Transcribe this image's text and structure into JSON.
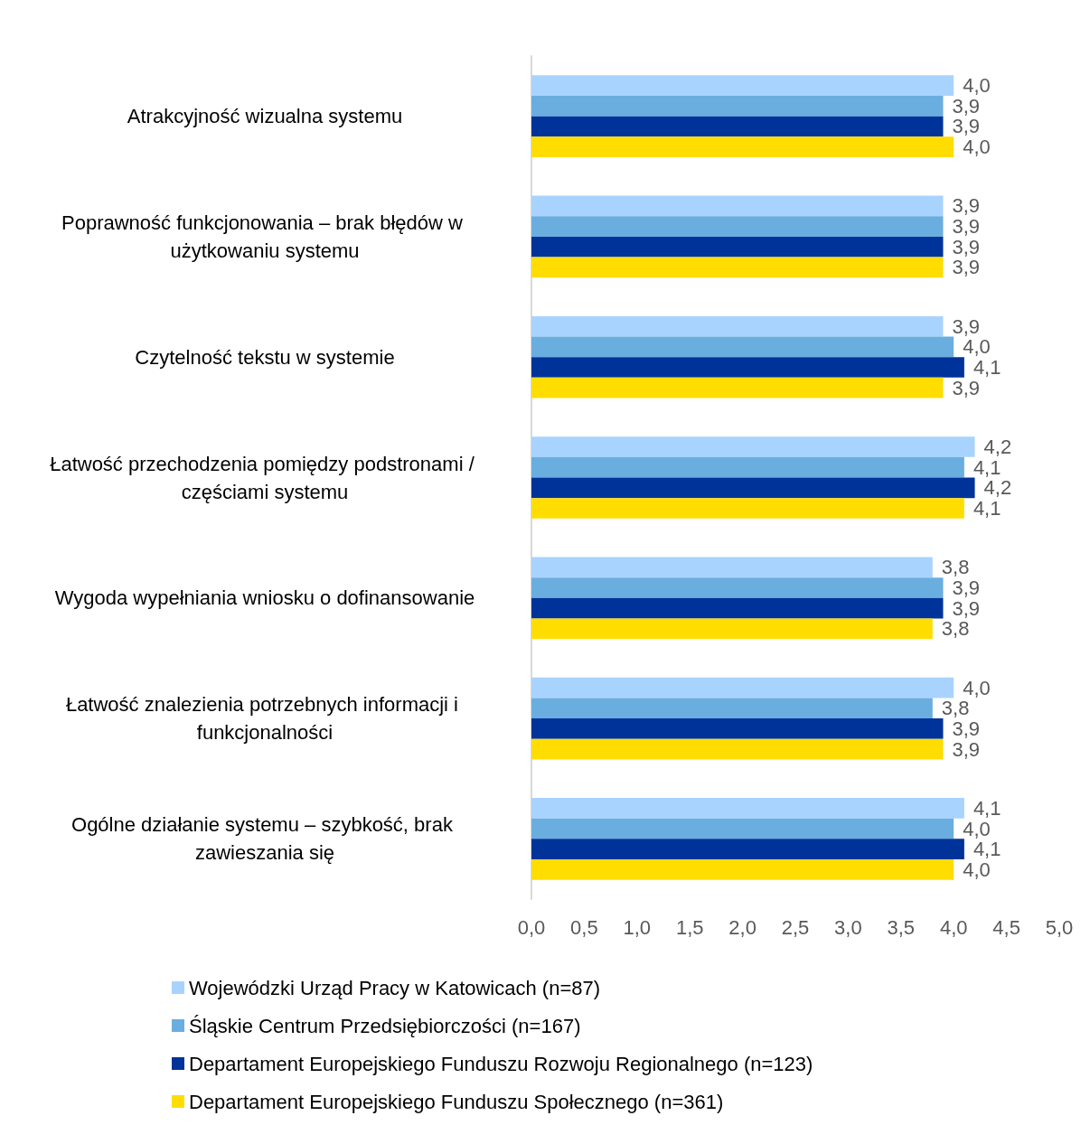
{
  "chart_data": {
    "type": "bar",
    "orientation": "horizontal",
    "categories": [
      "Atrakcyjność wizualna systemu",
      "Poprawność funkcjonowania – brak błędów w użytkowaniu systemu",
      "Czytelność tekstu w systemie",
      "Łatwość przechodzenia pomiędzy podstronami / częściami systemu",
      "Wygoda wypełniania wniosku o dofinansowanie",
      "Łatwość znalezienia potrzebnych informacji i funkcjonalności",
      "Ogólne działanie systemu – szybkość, brak zawieszania się"
    ],
    "series": [
      {
        "name": "Wojewódzki Urząd Pracy w Katowicach (n=87)",
        "color": "#a9d3ff",
        "values": [
          4.0,
          3.9,
          3.9,
          4.2,
          3.8,
          4.0,
          4.1
        ],
        "value_labels": [
          "4,0",
          "3,9",
          "3,9",
          "4,2",
          "3,8",
          "4,0",
          "4,1"
        ]
      },
      {
        "name": "Śląskie Centrum Przedsiębiorczości (n=167)",
        "color": "#6aaee0",
        "values": [
          3.9,
          3.9,
          4.0,
          4.1,
          3.9,
          3.8,
          4.0
        ],
        "value_labels": [
          "3,9",
          "3,9",
          "4,0",
          "4,1",
          "3,9",
          "3,8",
          "4,0"
        ]
      },
      {
        "name": "Departament Europejskiego Funduszu Rozwoju Regionalnego (n=123)",
        "color": "#003399",
        "values": [
          3.9,
          3.9,
          4.1,
          4.2,
          3.9,
          3.9,
          4.1
        ],
        "value_labels": [
          "3,9",
          "3,9",
          "4,1",
          "4,2",
          "3,9",
          "3,9",
          "4,1"
        ]
      },
      {
        "name": "Departament Europejskiego Funduszu Społecznego (n=361)",
        "color": "#ffdd00",
        "values": [
          4.0,
          3.9,
          3.9,
          4.1,
          3.8,
          3.9,
          4.0
        ],
        "value_labels": [
          "4,0",
          "3,9",
          "3,9",
          "4,1",
          "3,8",
          "3,9",
          "4,0"
        ]
      }
    ],
    "xlim": [
      0,
      5
    ],
    "xticks": [
      {
        "value": 0,
        "label": "0,0"
      },
      {
        "value": 0.5,
        "label": "0,5"
      },
      {
        "value": 1,
        "label": "1,0"
      },
      {
        "value": 1.5,
        "label": "1,5"
      },
      {
        "value": 2,
        "label": "2,0"
      },
      {
        "value": 2.5,
        "label": "2,5"
      },
      {
        "value": 3,
        "label": "3,0"
      },
      {
        "value": 3.5,
        "label": "3,5"
      },
      {
        "value": 4,
        "label": "4,0"
      },
      {
        "value": 4.5,
        "label": "4,5"
      },
      {
        "value": 5,
        "label": "5,0"
      }
    ],
    "grid": false,
    "legend": "bottom"
  }
}
